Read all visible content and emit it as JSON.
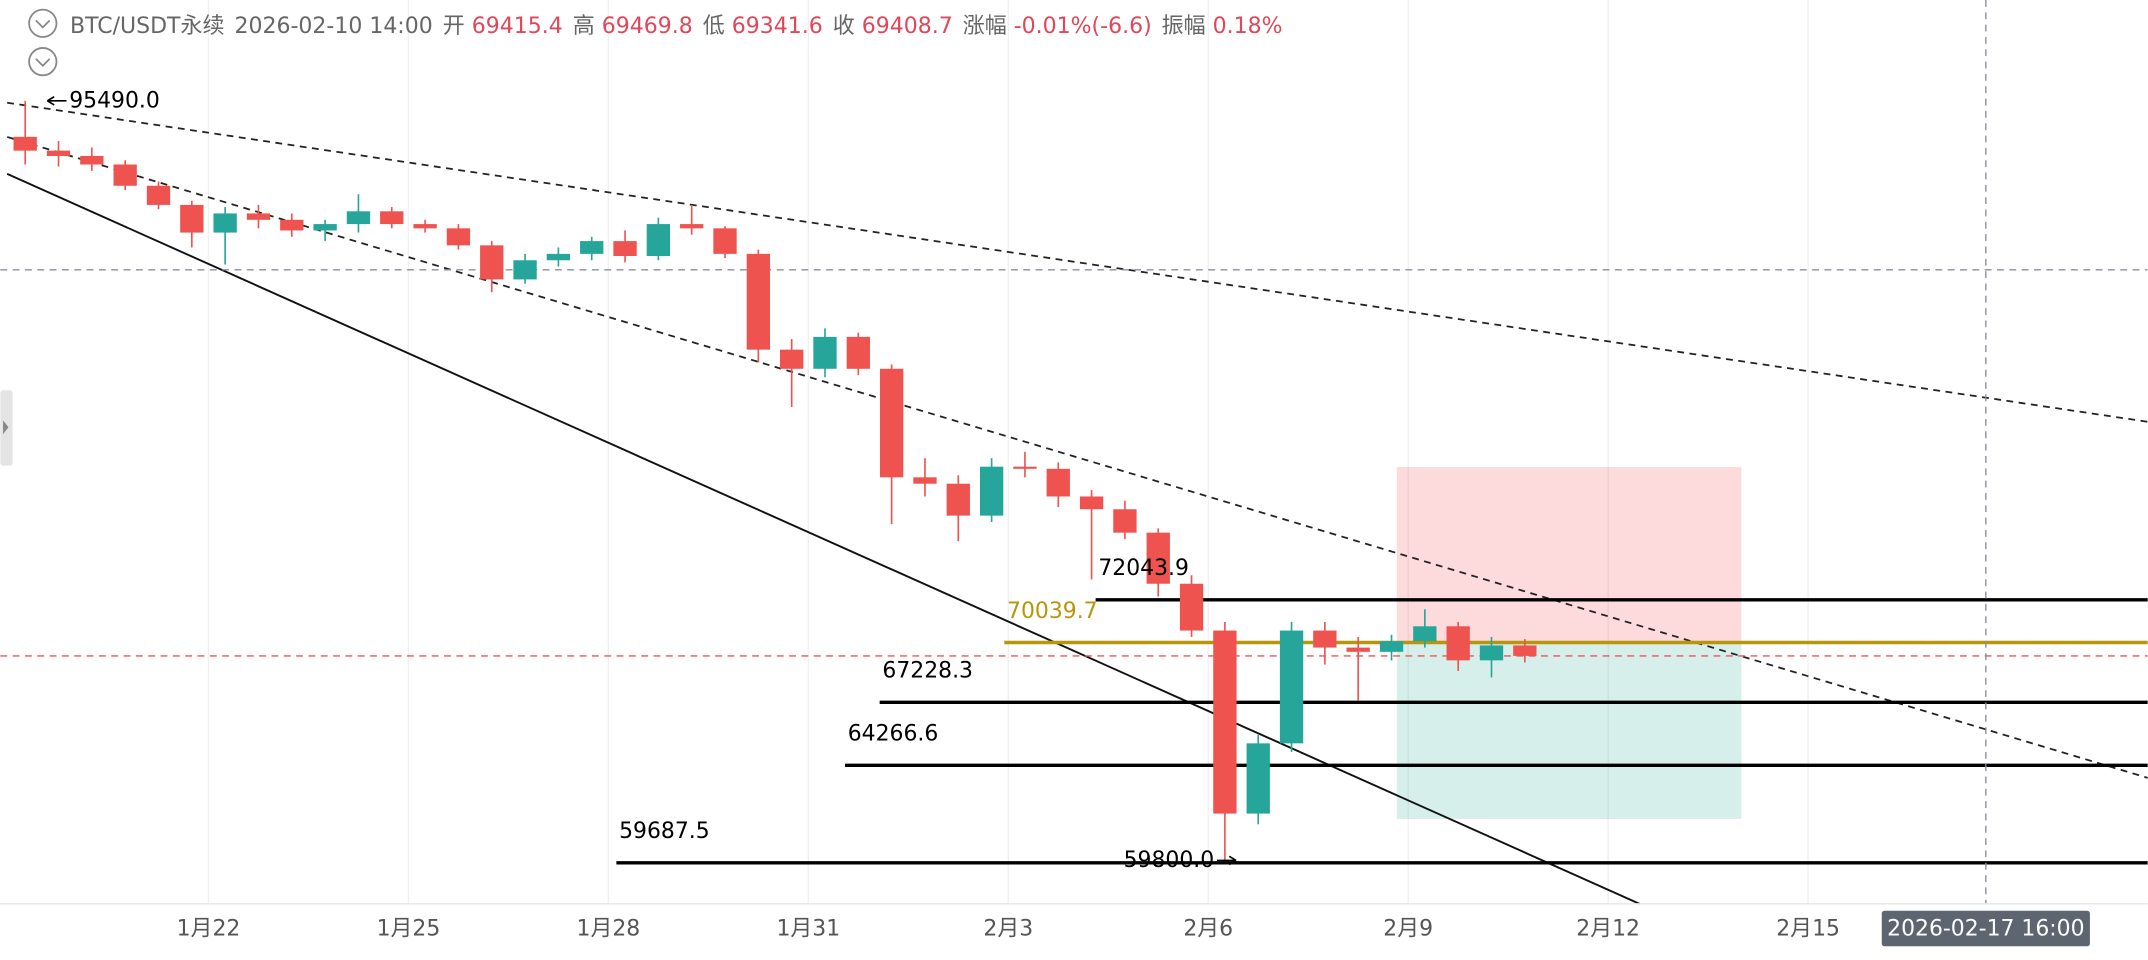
{
  "chart_data": {
    "type": "candlestick",
    "header": {
      "symbol": "BTC/USDT永续",
      "time": "2026-02-10 14:00",
      "open_label": "开",
      "open": 69415.4,
      "high_label": "高",
      "high": 69469.8,
      "low_label": "低",
      "low": 69341.6,
      "close_label": "收",
      "close": 69408.7,
      "change_label": "涨幅",
      "change": "-0.01%(-6.6)",
      "amplitude_label": "振幅",
      "amplitude": "0.18%"
    },
    "up_color": "#26a69a",
    "down_color": "#ef5350",
    "xlim": [
      18.877,
      51.095
    ],
    "ylim": [
      57758,
      100229
    ],
    "xticks": [
      {
        "value": 22,
        "label": "1月22"
      },
      {
        "value": 25,
        "label": "1月25"
      },
      {
        "value": 28,
        "label": "1月28"
      },
      {
        "value": 31,
        "label": "1月31"
      },
      {
        "value": 34,
        "label": "2月3"
      },
      {
        "value": 37,
        "label": "2月6"
      },
      {
        "value": 40,
        "label": "2月9"
      },
      {
        "value": 43,
        "label": "2月12"
      },
      {
        "value": 46,
        "label": "2月15"
      }
    ],
    "grid": true,
    "x": [
      19.0,
      19.5,
      20.0,
      20.5,
      21.0,
      21.5,
      22.0,
      22.5,
      23.0,
      23.5,
      24.0,
      24.5,
      25.0,
      25.5,
      26.0,
      26.5,
      27.0,
      27.5,
      28.0,
      28.5,
      29.0,
      29.5,
      30.0,
      30.5,
      31.0,
      31.5,
      32.0,
      32.5,
      33.0,
      33.5,
      34.0,
      34.5,
      35.0,
      35.5,
      36.0,
      36.5,
      37.0,
      37.5,
      38.0,
      38.5,
      39.0,
      39.5,
      40.0,
      40.5,
      41.0,
      41.5
    ],
    "open": [
      93800,
      93150,
      92900,
      92500,
      91500,
      90600,
      89300,
      90200,
      89900,
      89400,
      89700,
      90300,
      89700,
      89500,
      88700,
      87100,
      88000,
      88300,
      88900,
      88200,
      89700,
      89500,
      88300,
      83800,
      82900,
      84400,
      82900,
      77800,
      77500,
      76000,
      78300,
      78200,
      76900,
      76300,
      75200,
      72800,
      70600,
      62000,
      65300,
      70600,
      69800,
      69600,
      70100,
      70800,
      69200,
      69900
    ],
    "high": [
      95490,
      93600,
      93300,
      92700,
      91700,
      90800,
      90500,
      90600,
      90200,
      89900,
      91100,
      90500,
      89900,
      89700,
      88900,
      88300,
      88600,
      89100,
      89400,
      90000,
      90600,
      89600,
      88500,
      84300,
      84800,
      84600,
      83100,
      78700,
      77900,
      78700,
      79000,
      78500,
      77200,
      76700,
      75400,
      73200,
      71000,
      65700,
      71000,
      71000,
      70300,
      70400,
      71600,
      71000,
      70300,
      70200
    ],
    "low": [
      92500,
      92400,
      92200,
      91300,
      90400,
      88600,
      87800,
      89500,
      89100,
      88900,
      89300,
      89500,
      89300,
      88500,
      86500,
      86900,
      87700,
      88000,
      87900,
      88000,
      89200,
      88100,
      83200,
      81100,
      82500,
      82600,
      75600,
      76900,
      74800,
      75700,
      77800,
      76400,
      73000,
      74900,
      72200,
      70300,
      59800,
      61500,
      64900,
      69000,
      67300,
      69200,
      69800,
      68700,
      68400,
      69100
    ],
    "close": [
      93150,
      92900,
      92500,
      91500,
      90600,
      89300,
      90200,
      89900,
      89400,
      89700,
      90300,
      89700,
      89500,
      88700,
      87100,
      88000,
      88300,
      88900,
      88200,
      89700,
      89500,
      88300,
      83800,
      82900,
      84400,
      82900,
      77800,
      77500,
      76000,
      78300,
      78200,
      76900,
      76300,
      75200,
      72800,
      70600,
      62000,
      65300,
      70600,
      69800,
      69600,
      70100,
      70800,
      69200,
      69900,
      69408.7
    ],
    "candle_span": 0.5,
    "levels": [
      {
        "value": 72043.9,
        "x": 35.31,
        "color": "#000000"
      },
      {
        "value": 70039.7,
        "x": 33.94,
        "color": "#b8960c"
      },
      {
        "value": 67228.3,
        "x": 32.07,
        "color": "#000000"
      },
      {
        "value": 64266.6,
        "x": 31.55,
        "color": "#000000"
      },
      {
        "value": 59687.5,
        "x": 28.12,
        "color": "#000000"
      }
    ],
    "extremes": [
      {
        "value": 95490,
        "label": "95490.0",
        "x": 19.25
      },
      {
        "value": 59800,
        "label": "59800.0",
        "x": 37.25
      }
    ],
    "alert_line": 87552,
    "position": {
      "x": [
        39.83,
        45.0
      ],
      "stop": 78286,
      "entry": 70039.7,
      "target": 61748
    },
    "crosshair": {
      "value": 48.667,
      "label": "2026-02-17 16:00"
    }
  }
}
